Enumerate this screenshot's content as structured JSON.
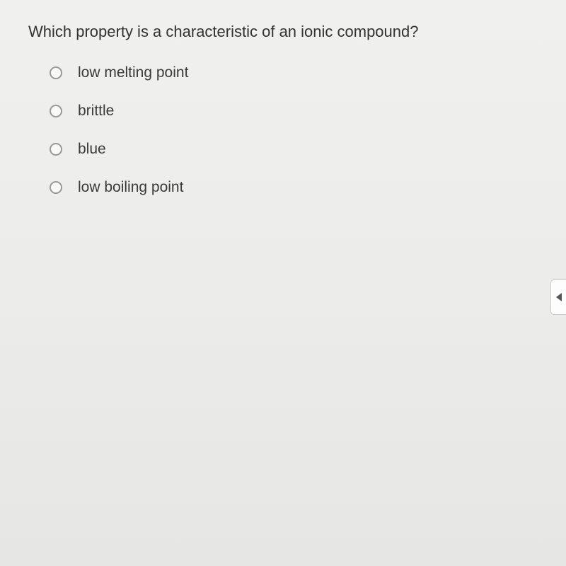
{
  "quiz": {
    "question": "Which property is a characteristic of an ionic compound?",
    "options": [
      {
        "label": "low melting point"
      },
      {
        "label": "brittle"
      },
      {
        "label": "blue"
      },
      {
        "label": "low boiling point"
      }
    ]
  },
  "colors": {
    "background_top": "#f0f0ee",
    "background_bottom": "#e6e6e4",
    "text": "#333333",
    "radio_border": "#999999",
    "nav_bg": "#fdfdfd",
    "nav_border": "#cccccc",
    "arrow_color": "#555555"
  },
  "typography": {
    "question_fontsize": 22,
    "option_fontsize": 21,
    "font_family": "Arial, Helvetica, sans-serif"
  }
}
